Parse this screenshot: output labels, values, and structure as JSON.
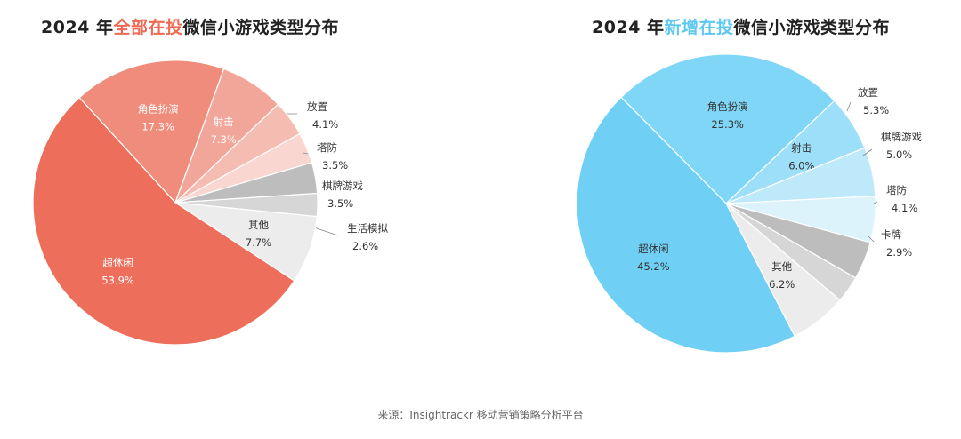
{
  "title_left": {
    "prefix": "2024 年",
    "highlight": "全部在投",
    "suffix": "微信小游戏类型分布",
    "highlight_color": "#ef6a55"
  },
  "title_right": {
    "prefix": "2024 年",
    "highlight": "新增在投",
    "suffix": "微信小游戏类型分布",
    "highlight_color": "#5ec8f2"
  },
  "source": "来源：Insightrackr 移动营销策略分析平台",
  "chart_data": [
    {
      "type": "pie",
      "title": "2024 年全部在投微信小游戏类型分布",
      "slices": [
        {
          "label": "角色扮演",
          "value": 17.3,
          "display": "17.3%",
          "color": "#ef8c7b",
          "label_pos": "inside",
          "text_color": "#ffffff"
        },
        {
          "label": "射击",
          "value": 7.3,
          "display": "7.3%",
          "color": "#f2a699",
          "label_pos": "inside",
          "text_color": "#ffffff"
        },
        {
          "label": "放置",
          "value": 4.1,
          "display": "4.1%",
          "color": "#f5bcb2",
          "label_pos": "outside",
          "text_color": "#333333"
        },
        {
          "label": "塔防",
          "value": 3.5,
          "display": "3.5%",
          "color": "#f9d6d0",
          "label_pos": "outside",
          "text_color": "#333333"
        },
        {
          "label": "棋牌游戏",
          "value": 3.5,
          "display": "3.5%",
          "color": "#bdbdbd",
          "label_pos": "outside",
          "text_color": "#333333"
        },
        {
          "label": "生活模拟",
          "value": 2.6,
          "display": "2.6%",
          "color": "#d6d6d6",
          "label_pos": "outside",
          "text_color": "#333333"
        },
        {
          "label": "其他",
          "value": 7.7,
          "display": "7.7%",
          "color": "#ececec",
          "label_pos": "inside",
          "text_color": "#333333"
        },
        {
          "label": "超休闲",
          "value": 53.9,
          "display": "53.9%",
          "color": "#ec6e5b",
          "label_pos": "inside",
          "text_color": "#ffffff"
        }
      ]
    },
    {
      "type": "pie",
      "title": "2024 年新增在投微信小游戏类型分布",
      "slices": [
        {
          "label": "角色扮演",
          "value": 25.3,
          "display": "25.3%",
          "color": "#7fd6f6",
          "label_pos": "inside",
          "text_color": "#333333"
        },
        {
          "label": "射击",
          "value": 6.0,
          "display": "6.0%",
          "color": "#9ddff8",
          "label_pos": "inside",
          "text_color": "#333333"
        },
        {
          "label": "放置",
          "value": 5.3,
          "display": "5.3%",
          "color": "#bde9fa",
          "label_pos": "outside",
          "text_color": "#333333"
        },
        {
          "label": "棋牌游戏",
          "value": 5.0,
          "display": "5.0%",
          "color": "#dcf3fc",
          "label_pos": "outside",
          "text_color": "#333333"
        },
        {
          "label": "塔防",
          "value": 4.1,
          "display": "4.1%",
          "color": "#bdbdbd",
          "label_pos": "outside",
          "text_color": "#333333"
        },
        {
          "label": "卡牌",
          "value": 2.9,
          "display": "2.9%",
          "color": "#d6d6d6",
          "label_pos": "outside",
          "text_color": "#333333"
        },
        {
          "label": "其他",
          "value": 6.2,
          "display": "6.2%",
          "color": "#ececec",
          "label_pos": "inside",
          "text_color": "#333333"
        },
        {
          "label": "超休闲",
          "value": 45.2,
          "display": "45.2%",
          "color": "#6fcff5",
          "label_pos": "inside",
          "text_color": "#333333"
        }
      ]
    }
  ]
}
